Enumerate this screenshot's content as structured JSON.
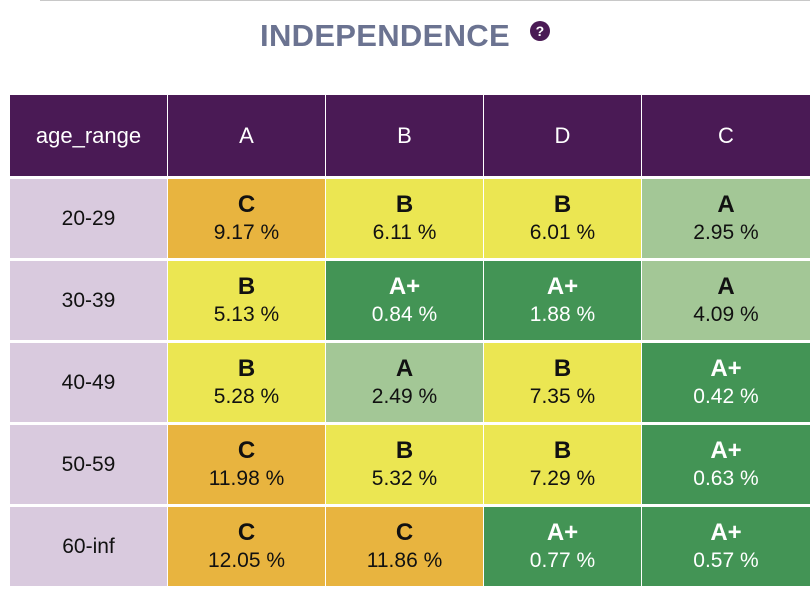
{
  "title": "INDEPENDENCE",
  "help_icon": "question-circle-icon",
  "colors": {
    "header_bg": "#4a1a55",
    "row_label_bg": "#d9cade",
    "grade_C": "#e8b43f",
    "grade_B": "#ebe652",
    "grade_A": "#a3c796",
    "grade_A+": "#439455"
  },
  "table": {
    "row_header": "age_range",
    "columns": [
      "A",
      "B",
      "D",
      "C"
    ],
    "rows": [
      {
        "label": "20-29",
        "cells": [
          {
            "grade": "C",
            "value": "9.17 %"
          },
          {
            "grade": "B",
            "value": "6.11 %"
          },
          {
            "grade": "B",
            "value": "6.01 %"
          },
          {
            "grade": "A",
            "value": "2.95 %"
          }
        ]
      },
      {
        "label": "30-39",
        "cells": [
          {
            "grade": "B",
            "value": "5.13 %"
          },
          {
            "grade": "A+",
            "value": "0.84 %"
          },
          {
            "grade": "A+",
            "value": "1.88 %"
          },
          {
            "grade": "A",
            "value": "4.09 %"
          }
        ]
      },
      {
        "label": "40-49",
        "cells": [
          {
            "grade": "B",
            "value": "5.28 %"
          },
          {
            "grade": "A",
            "value": "2.49 %"
          },
          {
            "grade": "B",
            "value": "7.35 %"
          },
          {
            "grade": "A+",
            "value": "0.42 %"
          }
        ]
      },
      {
        "label": "50-59",
        "cells": [
          {
            "grade": "C",
            "value": "11.98 %"
          },
          {
            "grade": "B",
            "value": "5.32 %"
          },
          {
            "grade": "B",
            "value": "7.29 %"
          },
          {
            "grade": "A+",
            "value": "0.63 %"
          }
        ]
      },
      {
        "label": "60-inf",
        "cells": [
          {
            "grade": "C",
            "value": "12.05 %"
          },
          {
            "grade": "C",
            "value": "11.86 %"
          },
          {
            "grade": "A+",
            "value": "0.77 %"
          },
          {
            "grade": "A+",
            "value": "0.57 %"
          }
        ]
      }
    ]
  }
}
